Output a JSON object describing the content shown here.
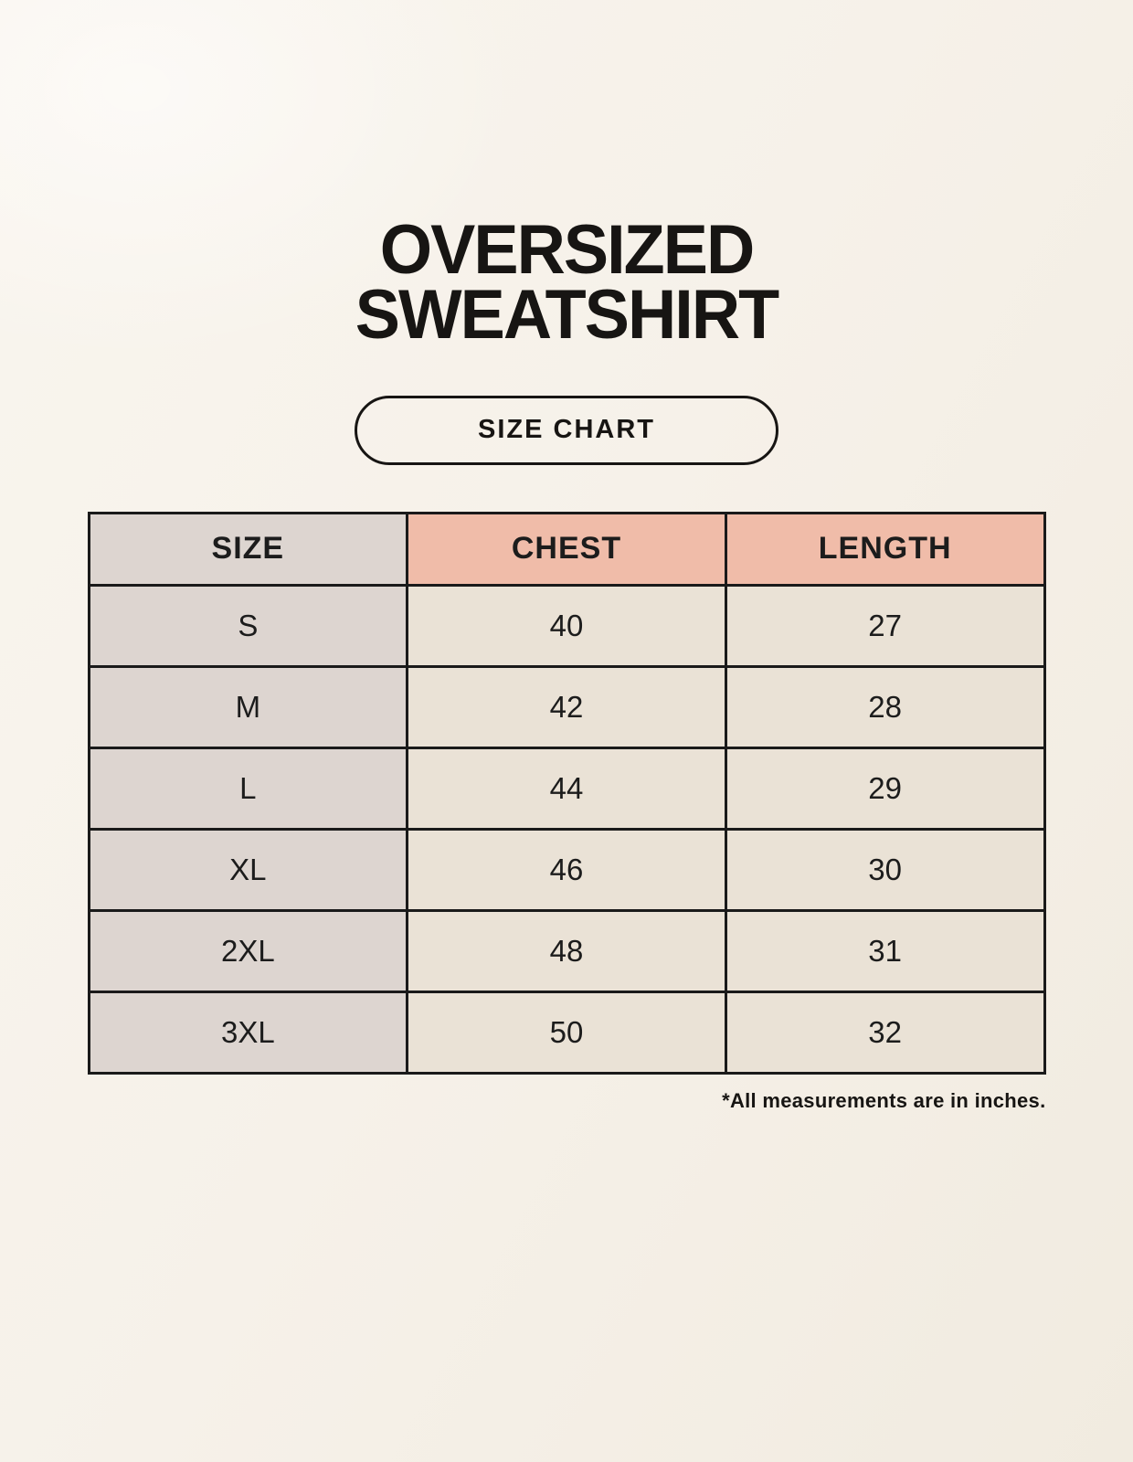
{
  "page": {
    "title_line1": "OVERSIZED",
    "title_line2": "SWEATSHIRT",
    "badge_label": "SIZE CHART",
    "footnote": "*All measurements are in inches."
  },
  "size_table": {
    "columns": {
      "size": "SIZE",
      "chest": "CHEST",
      "length": "LENGTH"
    },
    "rows": [
      {
        "size": "S",
        "chest": "40",
        "length": "27"
      },
      {
        "size": "M",
        "chest": "42",
        "length": "28"
      },
      {
        "size": "L",
        "chest": "44",
        "length": "29"
      },
      {
        "size": "XL",
        "chest": "46",
        "length": "30"
      },
      {
        "size": "2XL",
        "chest": "48",
        "length": "31"
      },
      {
        "size": "3XL",
        "chest": "50",
        "length": "32"
      }
    ]
  },
  "colors": {
    "background": "#f6f2ea",
    "size_column_bg": "#ddd5d0",
    "measure_header_bg": "#f0bca9",
    "value_cell_bg": "#eae2d6",
    "border": "#1a1a1a",
    "text": "#171513"
  },
  "chart_data": {
    "type": "table",
    "title": "OVERSIZED SWEATSHIRT — SIZE CHART",
    "columns": [
      "SIZE",
      "CHEST",
      "LENGTH"
    ],
    "rows": [
      [
        "S",
        40,
        27
      ],
      [
        "M",
        42,
        28
      ],
      [
        "L",
        44,
        29
      ],
      [
        "XL",
        46,
        30
      ],
      [
        "2XL",
        48,
        31
      ],
      [
        "3XL",
        50,
        32
      ]
    ],
    "units": "inches",
    "note": "*All measurements are in inches."
  }
}
